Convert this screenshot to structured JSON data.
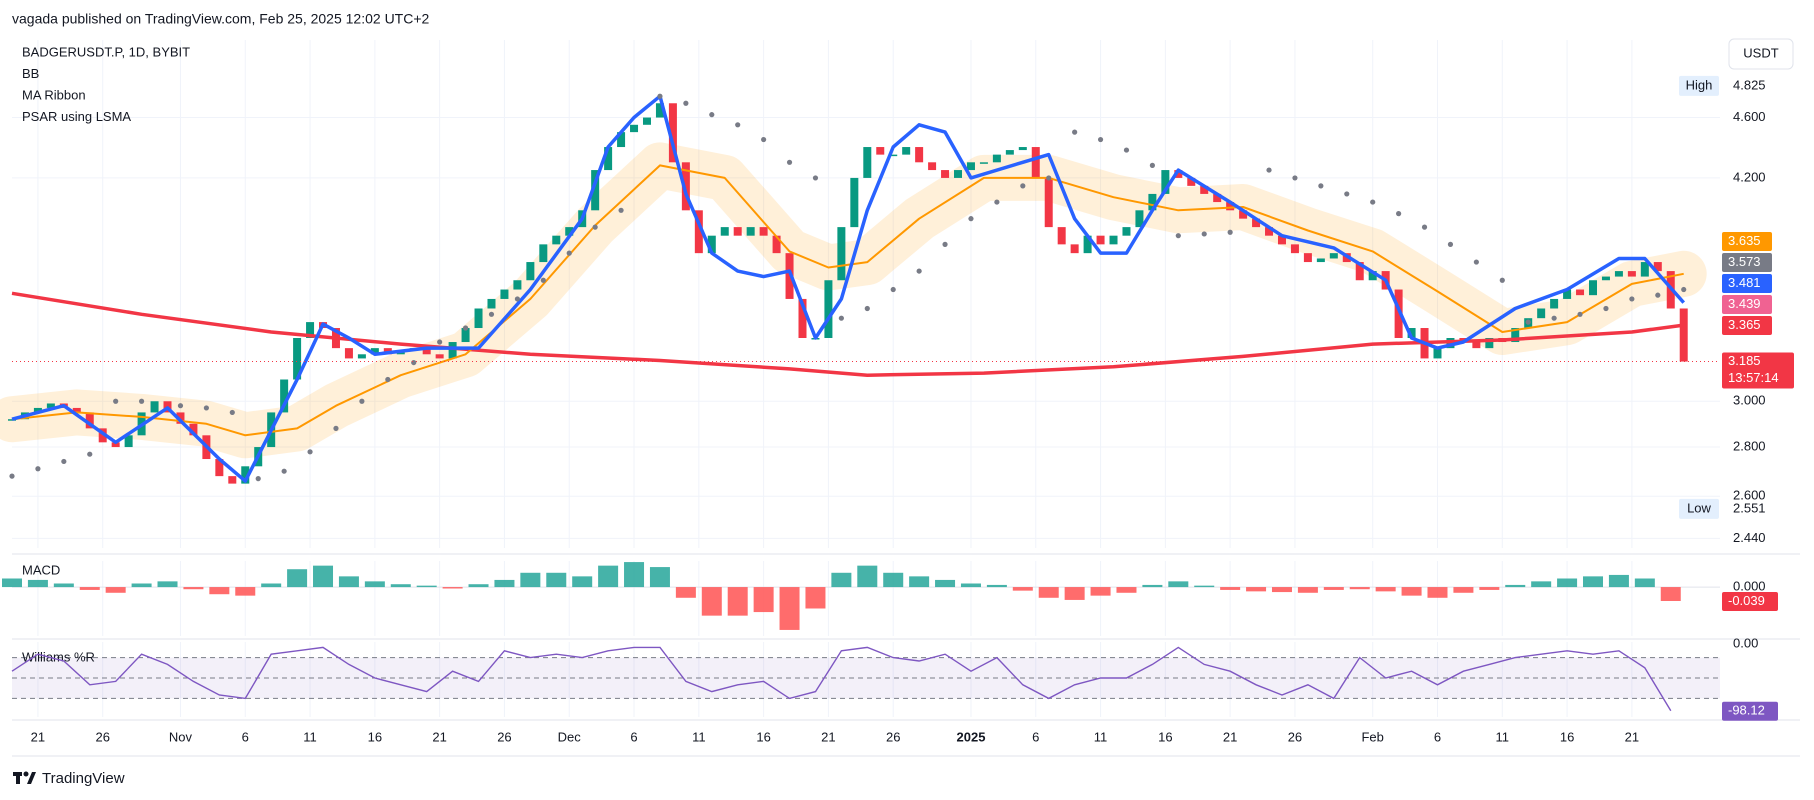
{
  "header": {
    "published": "vagada published on TradingView.com, Feb 25, 2025 12:02 UTC+2"
  },
  "footer": {
    "brand": "TradingView"
  },
  "chart_data": [
    {
      "type": "candlestick",
      "legend": [
        "BADGERUSDT.P, 1D, BYBIT",
        "BB",
        "MA Ribbon",
        "PSAR using LSMA"
      ],
      "currency": "USDT",
      "xlim": [
        0,
        131.8
      ],
      "xticks": [
        {
          "value": 2,
          "label": "21"
        },
        {
          "value": 7,
          "label": "26"
        },
        {
          "value": 13,
          "label": "Nov"
        },
        {
          "value": 18,
          "label": "6"
        },
        {
          "value": 23,
          "label": "11"
        },
        {
          "value": 28,
          "label": "16"
        },
        {
          "value": 33,
          "label": "21"
        },
        {
          "value": 38,
          "label": "26"
        },
        {
          "value": 43,
          "label": "Dec"
        },
        {
          "value": 48,
          "label": "6"
        },
        {
          "value": 53,
          "label": "11"
        },
        {
          "value": 58,
          "label": "16"
        },
        {
          "value": 63,
          "label": "21"
        },
        {
          "value": 68,
          "label": "26"
        },
        {
          "value": 74,
          "label": "2025"
        },
        {
          "value": 79,
          "label": "6"
        },
        {
          "value": 84,
          "label": "11"
        },
        {
          "value": 89,
          "label": "16"
        },
        {
          "value": 94,
          "label": "21"
        },
        {
          "value": 99,
          "label": "26"
        },
        {
          "value": 105,
          "label": "Feb"
        },
        {
          "value": 110,
          "label": "6"
        },
        {
          "value": 115,
          "label": "11"
        },
        {
          "value": 120,
          "label": "16"
        },
        {
          "value": 125,
          "label": "21"
        }
      ],
      "ylim": [
        2.405,
        5.17
      ],
      "log_scale": true,
      "grid": true,
      "yticks": [
        {
          "value": 4.6,
          "label": "4.600"
        },
        {
          "value": 4.2,
          "label": "4.200"
        },
        {
          "value": 3.0,
          "label": "3.000"
        },
        {
          "value": 2.8,
          "label": "2.800"
        },
        {
          "value": 2.6,
          "label": "2.600"
        },
        {
          "value": 2.44,
          "label": "2.440"
        }
      ],
      "series": [
        {
          "up_color": "#089981",
          "down_color": "#f23645",
          "values": [
            2.92,
            2.95,
            2.97,
            2.99,
            2.97,
            2.95,
            2.88,
            2.82,
            2.8,
            2.85,
            2.95,
            3.0,
            2.95,
            2.9,
            2.85,
            2.75,
            2.68,
            2.65,
            2.72,
            2.8,
            2.95,
            3.1,
            3.3,
            3.38,
            3.35,
            3.25,
            3.2,
            3.22,
            3.25,
            3.22,
            3.24,
            3.25,
            3.22,
            3.2,
            3.28,
            3.35,
            3.45,
            3.5,
            3.55,
            3.6,
            3.7,
            3.8,
            3.85,
            3.9,
            4.0,
            4.25,
            4.4,
            4.5,
            4.55,
            4.6,
            4.7,
            4.3,
            4.0,
            3.75,
            3.85,
            3.9,
            3.85,
            3.9,
            3.85,
            3.75,
            3.5,
            3.3,
            3.3,
            3.6,
            3.9,
            4.2,
            4.4,
            4.35,
            4.35,
            4.4,
            4.3,
            4.25,
            4.2,
            4.25,
            4.3,
            4.3,
            4.35,
            4.38,
            4.4,
            4.2,
            3.9,
            3.8,
            3.75,
            3.85,
            3.8,
            3.85,
            3.9,
            4.0,
            4.1,
            4.25,
            4.2,
            4.15,
            4.1,
            4.05,
            4.0,
            3.95,
            3.9,
            3.85,
            3.8,
            3.75,
            3.7,
            3.72,
            3.75,
            3.7,
            3.6,
            3.65,
            3.55,
            3.3,
            3.35,
            3.2,
            3.25,
            3.3,
            3.28,
            3.25,
            3.3,
            3.28,
            3.35,
            3.4,
            3.45,
            3.5,
            3.55,
            3.52,
            3.6,
            3.62,
            3.65,
            3.62,
            3.7,
            3.65,
            3.45,
            3.185
          ]
        }
      ],
      "overlays": [
        {
          "color": "#f23645",
          "width": 3.5,
          "x": [
            0,
            10,
            20,
            30,
            40,
            50,
            60,
            66,
            75,
            85,
            95,
            105,
            115,
            125,
            129
          ],
          "values": [
            3.53,
            3.42,
            3.33,
            3.27,
            3.22,
            3.19,
            3.15,
            3.12,
            3.13,
            3.16,
            3.21,
            3.27,
            3.29,
            3.33,
            3.365
          ]
        },
        {
          "color": "#ff9800",
          "width": 2,
          "band": true,
          "x": [
            0,
            5,
            10,
            15,
            18,
            22,
            25,
            30,
            35,
            40,
            45,
            50,
            55,
            60,
            63,
            66,
            70,
            75,
            80,
            85,
            90,
            95,
            100,
            105,
            110,
            115,
            120,
            125,
            129
          ],
          "values": [
            2.92,
            2.95,
            2.93,
            2.9,
            2.85,
            2.88,
            2.98,
            3.12,
            3.22,
            3.5,
            3.91,
            4.28,
            4.2,
            3.76,
            3.67,
            3.7,
            3.95,
            4.2,
            4.2,
            4.08,
            4.0,
            4.02,
            3.88,
            3.76,
            3.54,
            3.33,
            3.38,
            3.58,
            3.635
          ]
        },
        {
          "color": "#2962ff",
          "width": 3.5,
          "x": [
            0,
            4,
            8,
            12,
            16,
            18,
            22,
            24,
            26,
            28,
            32,
            36,
            40,
            44,
            46,
            48,
            50,
            52,
            54,
            56,
            58,
            60,
            62,
            64,
            66,
            68,
            70,
            72,
            74,
            78,
            80,
            82,
            84,
            86,
            88,
            90,
            94,
            98,
            102,
            106,
            108,
            110,
            112,
            116,
            120,
            124,
            126,
            129
          ],
          "values": [
            2.92,
            2.98,
            2.82,
            2.97,
            2.75,
            2.66,
            3.1,
            3.37,
            3.3,
            3.22,
            3.25,
            3.25,
            3.55,
            3.95,
            4.4,
            4.6,
            4.75,
            4.1,
            3.75,
            3.65,
            3.62,
            3.65,
            3.3,
            3.5,
            4.0,
            4.4,
            4.55,
            4.5,
            4.2,
            4.3,
            4.35,
            3.95,
            3.75,
            3.75,
            4.0,
            4.25,
            4.05,
            3.85,
            3.78,
            3.6,
            3.3,
            3.25,
            3.28,
            3.45,
            3.55,
            3.72,
            3.72,
            3.481
          ]
        }
      ],
      "psar": {
        "color": "#787b86",
        "points": [
          [
            0,
            2.68
          ],
          [
            2,
            2.71
          ],
          [
            4,
            2.74
          ],
          [
            6,
            2.77
          ],
          [
            8,
            3.0
          ],
          [
            10,
            3.0
          ],
          [
            13,
            2.98
          ],
          [
            15,
            2.97
          ],
          [
            17,
            2.95
          ],
          [
            19,
            2.67
          ],
          [
            21,
            2.7
          ],
          [
            23,
            2.78
          ],
          [
            25,
            2.88
          ],
          [
            27,
            3.0
          ],
          [
            29,
            3.1
          ],
          [
            31,
            3.18
          ],
          [
            33,
            3.28
          ],
          [
            35,
            3.35
          ],
          [
            37,
            3.42
          ],
          [
            39,
            3.5
          ],
          [
            41,
            3.6
          ],
          [
            43,
            3.75
          ],
          [
            45,
            3.9
          ],
          [
            47,
            4.0
          ],
          [
            50,
            4.75
          ],
          [
            52,
            4.7
          ],
          [
            54,
            4.62
          ],
          [
            56,
            4.55
          ],
          [
            58,
            4.45
          ],
          [
            60,
            4.3
          ],
          [
            62,
            4.2
          ],
          [
            64,
            3.4
          ],
          [
            66,
            3.45
          ],
          [
            68,
            3.55
          ],
          [
            70,
            3.65
          ],
          [
            72,
            3.8
          ],
          [
            74,
            3.95
          ],
          [
            76,
            4.05
          ],
          [
            78,
            4.15
          ],
          [
            80,
            4.2
          ],
          [
            82,
            4.5
          ],
          [
            84,
            4.45
          ],
          [
            86,
            4.38
          ],
          [
            88,
            4.28
          ],
          [
            90,
            3.85
          ],
          [
            92,
            3.86
          ],
          [
            94,
            3.87
          ],
          [
            97,
            4.25
          ],
          [
            99,
            4.2
          ],
          [
            101,
            4.15
          ],
          [
            103,
            4.1
          ],
          [
            105,
            4.05
          ],
          [
            107,
            3.98
          ],
          [
            109,
            3.9
          ],
          [
            111,
            3.8
          ],
          [
            113,
            3.7
          ],
          [
            115,
            3.6
          ],
          [
            117,
            3.38
          ],
          [
            119,
            3.4
          ],
          [
            121,
            3.42
          ],
          [
            123,
            3.45
          ],
          [
            125,
            3.5
          ],
          [
            127,
            3.52
          ],
          [
            129,
            3.55
          ]
        ]
      },
      "high": {
        "label": "High",
        "value": 4.825
      },
      "low": {
        "label": "Low",
        "value": 2.551
      },
      "price_tags": [
        {
          "value": 3.635,
          "color": "#ff9800"
        },
        {
          "value": 3.573,
          "color": "#787b86"
        },
        {
          "value": 3.481,
          "color": "#2962ff"
        },
        {
          "value": 3.439,
          "color": "#f06292"
        },
        {
          "value": 3.365,
          "color": "#f23645"
        }
      ],
      "last_price": {
        "value": 3.185,
        "countdown": "13:57:14",
        "color": "#f23645"
      }
    },
    {
      "type": "histogram",
      "title": "MACD",
      "ylim": [
        -0.137,
        0.073
      ],
      "yticks": [
        {
          "value": 0,
          "label": "0.000"
        }
      ],
      "up_color": "#26a69a",
      "down_color": "#ff5252",
      "x": [
        0,
        2,
        4,
        6,
        8,
        10,
        12,
        14,
        16,
        18,
        20,
        22,
        24,
        26,
        28,
        30,
        32,
        34,
        36,
        38,
        40,
        42,
        44,
        46,
        48,
        50,
        52,
        54,
        56,
        58,
        60,
        62,
        64,
        66,
        68,
        70,
        72,
        74,
        76,
        78,
        80,
        82,
        84,
        86,
        88,
        90,
        92,
        94,
        96,
        98,
        100,
        102,
        104,
        106,
        108,
        110,
        112,
        114,
        116,
        118,
        120,
        122,
        124,
        126,
        128
      ],
      "values": [
        0.024,
        0.02,
        0.01,
        -0.008,
        -0.016,
        0.01,
        0.016,
        -0.006,
        -0.02,
        -0.024,
        0.01,
        0.05,
        0.06,
        0.03,
        0.016,
        0.008,
        0.004,
        -0.004,
        0.008,
        0.02,
        0.04,
        0.04,
        0.03,
        0.06,
        0.07,
        0.056,
        -0.03,
        -0.08,
        -0.08,
        -0.07,
        -0.12,
        -0.06,
        0.04,
        0.06,
        0.04,
        0.03,
        0.02,
        0.01,
        0.006,
        -0.01,
        -0.03,
        -0.036,
        -0.024,
        -0.016,
        0.006,
        0.016,
        0.004,
        -0.008,
        -0.012,
        -0.014,
        -0.016,
        -0.008,
        -0.006,
        -0.012,
        -0.024,
        -0.03,
        -0.016,
        -0.008,
        0.006,
        0.016,
        0.024,
        0.03,
        0.034,
        0.024,
        -0.039
      ],
      "last_value": -0.039,
      "last_color": "#f23645"
    },
    {
      "type": "line",
      "title": "Williams %R",
      "ylim": [
        -107.4,
        2.9
      ],
      "yticks": [
        {
          "value": 0,
          "label": "0.00"
        }
      ],
      "levels": [
        -20,
        -50,
        -80
      ],
      "color": "#7e57c2",
      "x": [
        0,
        2,
        4,
        6,
        8,
        10,
        12,
        14,
        16,
        18,
        20,
        22,
        24,
        26,
        28,
        30,
        32,
        34,
        36,
        38,
        40,
        42,
        44,
        46,
        48,
        50,
        52,
        54,
        56,
        58,
        60,
        62,
        64,
        66,
        68,
        70,
        72,
        74,
        76,
        78,
        80,
        82,
        84,
        86,
        88,
        90,
        92,
        94,
        96,
        98,
        100,
        102,
        104,
        106,
        108,
        110,
        112,
        114,
        116,
        118,
        120,
        122,
        124,
        126,
        128
      ],
      "values": [
        -40,
        -15,
        -25,
        -60,
        -55,
        -15,
        -30,
        -55,
        -75,
        -80,
        -15,
        -10,
        -5,
        -30,
        -50,
        -60,
        -70,
        -40,
        -55,
        -10,
        -20,
        -15,
        -20,
        -10,
        -5,
        -5,
        -55,
        -70,
        -60,
        -55,
        -80,
        -70,
        -10,
        -5,
        -20,
        -25,
        -15,
        -40,
        -20,
        -60,
        -80,
        -60,
        -50,
        -50,
        -30,
        -5,
        -30,
        -40,
        -60,
        -75,
        -60,
        -80,
        -20,
        -50,
        -40,
        -60,
        -40,
        -30,
        -20,
        -15,
        -10,
        -15,
        -10,
        -35,
        -98.12
      ],
      "last_value": -98.12
    }
  ]
}
